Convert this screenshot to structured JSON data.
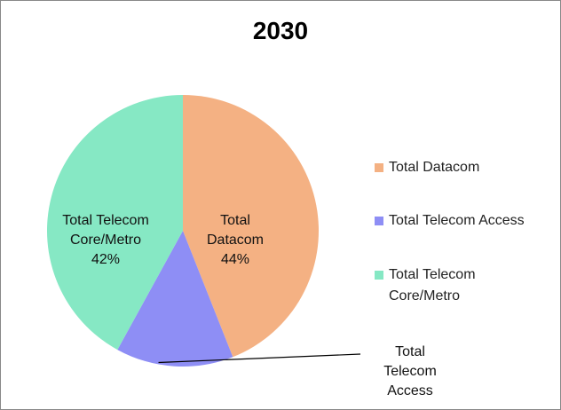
{
  "chart_data": {
    "type": "pie",
    "title": "2030",
    "categories": [
      "Total Datacom",
      "Total Telecom Access",
      "Total Telecom Core/Metro"
    ],
    "values": [
      44,
      14,
      42
    ],
    "value_labels": [
      "44%",
      null,
      "42%"
    ],
    "colors": [
      "#f4b183",
      "#8e8ef5",
      "#86e8c4"
    ],
    "legend": "right"
  }
}
